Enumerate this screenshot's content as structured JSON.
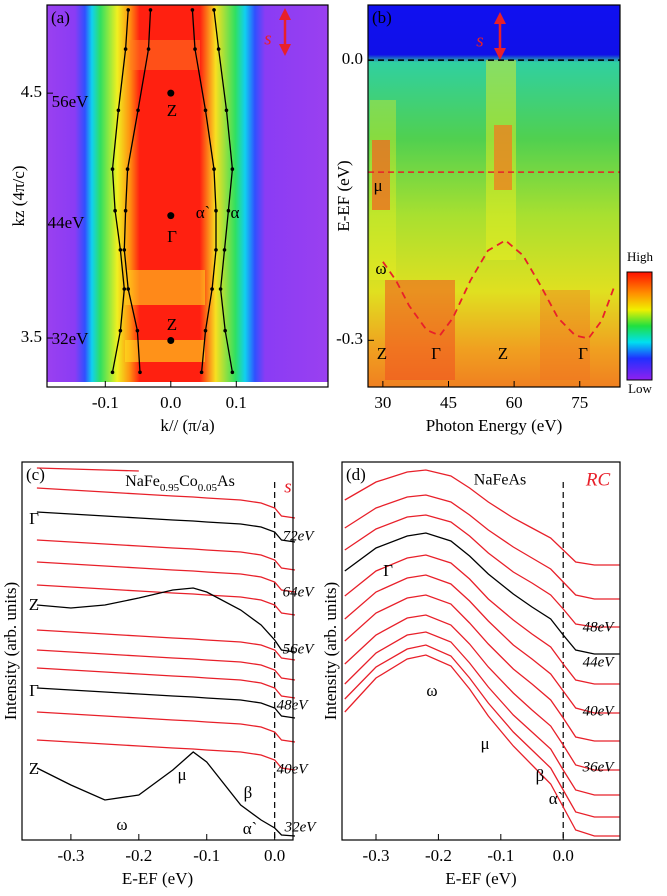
{
  "chart_data": [
    {
      "type": "heatmap",
      "panel_label": "(a)",
      "xlabel": "k// (π/a)",
      "ylabel": "kz (4π/c)",
      "xlim": [
        -0.189,
        0.24
      ],
      "ylim": [
        3.3,
        4.86
      ],
      "xticks": [
        -0.1,
        {
          "value": 0,
          "label": "0.0"
        },
        0.1
      ],
      "yticks": [
        3.5,
        4.5
      ],
      "series": [
        {
          "color": "#000000",
          "x": [
            -0.089,
            -0.077,
            -0.071,
            -0.077,
            -0.085,
            -0.089,
            -0.08,
            -0.069,
            -0.065
          ],
          "values": [
            3.36,
            3.53,
            3.7,
            3.86,
            4.02,
            4.19,
            4.43,
            4.68,
            4.84
          ]
        },
        {
          "color": "#000000",
          "x": [
            -0.047,
            -0.051,
            -0.065,
            -0.071,
            -0.069,
            -0.066,
            -0.05,
            -0.034,
            -0.031
          ],
          "values": [
            3.36,
            3.53,
            3.7,
            3.86,
            4.02,
            4.19,
            4.43,
            4.68,
            4.84
          ]
        },
        {
          "color": "#000000",
          "x": [
            0.047,
            0.053,
            0.063,
            0.069,
            0.069,
            0.066,
            0.053,
            0.037,
            0.033
          ],
          "values": [
            3.36,
            3.53,
            3.7,
            3.86,
            4.02,
            4.19,
            4.43,
            4.68,
            4.84
          ]
        },
        {
          "color": "#000000",
          "x": [
            0.094,
            0.083,
            0.076,
            0.082,
            0.088,
            0.094,
            0.085,
            0.073,
            0.066
          ],
          "values": [
            3.36,
            3.53,
            3.7,
            3.86,
            4.02,
            4.19,
            4.43,
            4.68,
            4.84
          ]
        }
      ],
      "points": {
        "x": [
          0,
          0,
          0
        ],
        "values": [
          4.5,
          4.0,
          3.49
        ]
      },
      "annotations": [
        "56eV",
        "44eV",
        "32eV",
        "Z",
        "Γ",
        "Z",
        "α`",
        "α",
        "s"
      ]
    },
    {
      "type": "heatmap",
      "panel_label": "(b)",
      "xlabel": "Photon Energy (eV)",
      "ylabel": "E-EF (eV)",
      "xlim": [
        26.6,
        84.2
      ],
      "ylim": [
        -0.35,
        0.059
      ],
      "xticks": [
        30,
        45,
        60,
        75
      ],
      "yticks": [
        {
          "value": 0,
          "label": "0.0"
        },
        -0.3
      ],
      "hlines": [
        {
          "value": 0,
          "color": "#000000"
        },
        {
          "value": -0.12,
          "color": "#e8202a"
        }
      ],
      "series": [
        {
          "color": "#e8202a",
          "x": [
            30,
            33,
            36,
            40,
            43,
            46,
            50,
            54,
            58,
            62,
            66,
            70,
            74,
            77,
            80,
            83
          ],
          "values": [
            -0.216,
            -0.236,
            -0.263,
            -0.289,
            -0.295,
            -0.276,
            -0.236,
            -0.204,
            -0.193,
            -0.209,
            -0.241,
            -0.276,
            -0.295,
            -0.298,
            -0.279,
            -0.241
          ]
        }
      ],
      "colorbar_labels": [
        "High",
        "Low"
      ],
      "annotations": [
        "s",
        "μ",
        "ω",
        "Z",
        "Γ",
        "Z",
        "Γ"
      ]
    },
    {
      "type": "line",
      "panel_label": "(c)",
      "xlabel": "E-EF (eV)",
      "ylabel": "Intensity (arb. units)",
      "title_parts": [
        "NaFe",
        "0.95",
        "Co",
        "0.05",
        "As"
      ],
      "xlim": [
        -0.372,
        0.027
      ],
      "ylim": [
        0,
        378
      ],
      "xticks": [
        -0.3,
        -0.2,
        -0.1,
        {
          "value": 0,
          "label": "0.0"
        }
      ],
      "x": [
        -0.35,
        -0.3,
        -0.25,
        -0.2,
        -0.15,
        -0.12,
        -0.1,
        -0.05,
        -0.02,
        0.0,
        0.01,
        0.03
      ],
      "series": [
        {
          "color": "#e8202a",
          "values": [
            372,
            371,
            370,
            369,
            null,
            null,
            null,
            null,
            null,
            null,
            null,
            null
          ]
        },
        {
          "color": "#e8202a",
          "values": [
            352,
            350,
            348,
            346,
            344,
            343,
            342,
            340,
            337,
            332,
            324,
            322
          ]
        },
        {
          "color": "#000000",
          "values": [
            328,
            326,
            324,
            322,
            320,
            319,
            318,
            316,
            313,
            308,
            300,
            298
          ]
        },
        {
          "color": "#e8202a",
          "values": [
            300,
            298,
            296,
            294,
            292,
            291,
            290,
            288,
            285,
            280,
            272,
            270
          ]
        },
        {
          "color": "#e8202a",
          "values": [
            278,
            276,
            274,
            272,
            270,
            269,
            268,
            266,
            263,
            258,
            250,
            248
          ]
        },
        {
          "color": "#e8202a",
          "values": [
            255,
            253,
            251,
            249,
            247,
            246,
            245,
            243,
            240,
            235,
            227,
            225
          ]
        },
        {
          "color": "#000000",
          "values": [
            235,
            232,
            235,
            242,
            250,
            252,
            248,
            230,
            215,
            200,
            190,
            188
          ]
        },
        {
          "color": "#e8202a",
          "values": [
            210,
            208,
            206,
            204,
            202,
            201,
            200,
            198,
            195,
            190,
            182,
            180
          ]
        },
        {
          "color": "#e8202a",
          "values": [
            190,
            188,
            186,
            184,
            182,
            181,
            180,
            178,
            175,
            170,
            162,
            160
          ]
        },
        {
          "color": "#e8202a",
          "values": [
            172,
            170,
            168,
            166,
            164,
            163,
            162,
            160,
            157,
            152,
            144,
            142
          ]
        },
        {
          "color": "#000000",
          "values": [
            152,
            150,
            148,
            146,
            144,
            143,
            142,
            140,
            137,
            132,
            124,
            122
          ]
        },
        {
          "color": "#e8202a",
          "values": [
            128,
            126,
            124,
            122,
            120,
            119,
            118,
            116,
            113,
            108,
            100,
            98
          ]
        },
        {
          "color": "#e8202a",
          "values": [
            100,
            98,
            96,
            94,
            92,
            91,
            90,
            88,
            85,
            80,
            72,
            70
          ]
        },
        {
          "color": "#000000",
          "values": [
            72,
            55,
            40,
            45,
            70,
            88,
            78,
            35,
            20,
            12,
            5,
            4
          ]
        }
      ],
      "annotations": [
        "s",
        "Γ",
        "Z",
        "Γ",
        "Z",
        "72eV",
        "64eV",
        "56eV",
        "48eV",
        "40eV",
        "32eV",
        "ω",
        "μ",
        "β",
        "α`"
      ]
    },
    {
      "type": "line",
      "panel_label": "(d)",
      "xlabel": "E-EF (eV)",
      "ylabel": "Intensity (arb. units)",
      "title": "NaFeAs",
      "xlim": [
        -0.3545,
        0.091
      ],
      "ylim": [
        0,
        378
      ],
      "xticks": [
        -0.3,
        -0.2,
        -0.1,
        {
          "value": 0,
          "label": "0.0"
        }
      ],
      "x": [
        -0.35,
        -0.3,
        -0.25,
        -0.22,
        -0.18,
        -0.15,
        -0.12,
        -0.08,
        -0.05,
        -0.02,
        0.0,
        0.02,
        0.05,
        0.09
      ],
      "series": [
        {
          "color": "#e8202a",
          "values": [
            340,
            358,
            368,
            370,
            364,
            352,
            338,
            322,
            312,
            302,
            290,
            278,
            275,
            275
          ]
        },
        {
          "color": "#e8202a",
          "values": [
            312,
            332,
            343,
            345,
            338,
            325,
            310,
            293,
            282,
            271,
            258,
            245,
            241,
            241
          ]
        },
        {
          "color": "#e8202a",
          "values": [
            290,
            311,
            323,
            325,
            318,
            304,
            287,
            268,
            257,
            245,
            231,
            216,
            213,
            213
          ]
        },
        {
          "color": "#000000",
          "values": [
            269,
            292,
            304,
            307,
            299,
            284,
            266,
            246,
            233,
            221,
            205,
            190,
            186,
            186
          ]
        },
        {
          "color": "#e8202a",
          "values": [
            244,
            269,
            282,
            285,
            277,
            261,
            241,
            220,
            206,
            193,
            176,
            160,
            156,
            156
          ]
        },
        {
          "color": "#e8202a",
          "values": [
            221,
            248,
            262,
            265,
            256,
            239,
            219,
            195,
            181,
            166,
            149,
            132,
            127,
            127
          ]
        },
        {
          "color": "#e8202a",
          "values": [
            199,
            227,
            242,
            245,
            236,
            217,
            196,
            171,
            156,
            140,
            122,
            103,
            99,
            99
          ]
        },
        {
          "color": "#e8202a",
          "values": [
            176,
            205,
            222,
            225,
            215,
            196,
            173,
            147,
            130,
            114,
            95,
            75,
            70,
            70
          ]
        },
        {
          "color": "#e8202a",
          "values": [
            156,
            187,
            205,
            208,
            198,
            177,
            153,
            125,
            108,
            91,
            70,
            50,
            45,
            45
          ]
        },
        {
          "color": "#e8202a",
          "values": [
            141,
            173,
            191,
            195,
            184,
            162,
            137,
            108,
            90,
            72,
            50,
            28,
            23,
            23
          ]
        },
        {
          "color": "#e8202a",
          "values": [
            128,
            162,
            181,
            185,
            174,
            151,
            124,
            94,
            75,
            56,
            33,
            10,
            4,
            4
          ]
        }
      ],
      "annotations": [
        "RC",
        "Γ",
        "48eV",
        "44eV",
        "40eV",
        "36eV",
        "ω",
        "μ",
        "β",
        "α`"
      ]
    }
  ]
}
